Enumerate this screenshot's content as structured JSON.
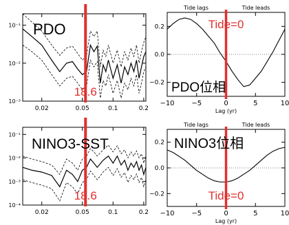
{
  "chart_data": [
    {
      "type": "line",
      "panel": "top-left",
      "title": "PDO",
      "x_scale": "log",
      "y_scale": "log",
      "xlim": [
        0.013,
        0.21
      ],
      "ylim": [
        0.001,
        0.2
      ],
      "x_ticks": [
        "0.02",
        "0.05",
        "0.1",
        "0.2"
      ],
      "y_ticks": [
        "10⁻¹",
        "10⁻²",
        "10⁻³"
      ],
      "marker": {
        "x": 0.0537,
        "label": "18.6"
      },
      "series": [
        {
          "role": "spectrum",
          "style": "solid",
          "x": [
            0.013,
            0.016,
            0.02,
            0.025,
            0.03,
            0.035,
            0.04,
            0.045,
            0.05,
            0.055,
            0.06,
            0.065,
            0.07,
            0.075,
            0.08,
            0.085,
            0.09,
            0.1,
            0.11,
            0.12,
            0.13,
            0.14,
            0.15,
            0.16,
            0.17,
            0.18,
            0.19,
            0.2,
            0.21
          ],
          "y": [
            0.08,
            0.05,
            0.03,
            0.012,
            0.006,
            0.01,
            0.011,
            0.007,
            0.005,
            0.006,
            0.03,
            0.02,
            0.028,
            0.003,
            0.009,
            0.006,
            0.012,
            0.004,
            0.009,
            0.003,
            0.008,
            0.005,
            0.01,
            0.006,
            0.012,
            0.004,
            0.008,
            0.015,
            0.02
          ]
        },
        {
          "role": "upper-bound",
          "style": "dashed",
          "x": [
            0.013,
            0.016,
            0.02,
            0.025,
            0.03,
            0.035,
            0.04,
            0.045,
            0.05,
            0.055,
            0.06,
            0.065,
            0.07,
            0.075,
            0.08,
            0.085,
            0.09,
            0.1,
            0.11,
            0.12,
            0.13,
            0.14,
            0.15,
            0.16,
            0.17,
            0.18,
            0.19,
            0.2,
            0.21
          ],
          "y": [
            0.2,
            0.12,
            0.07,
            0.03,
            0.016,
            0.025,
            0.028,
            0.018,
            0.012,
            0.016,
            0.07,
            0.05,
            0.07,
            0.008,
            0.022,
            0.015,
            0.03,
            0.01,
            0.022,
            0.008,
            0.02,
            0.012,
            0.025,
            0.015,
            0.03,
            0.01,
            0.02,
            0.035,
            0.05
          ]
        },
        {
          "role": "lower-bound",
          "style": "dashed",
          "x": [
            0.013,
            0.016,
            0.02,
            0.025,
            0.03,
            0.035,
            0.04,
            0.045,
            0.05,
            0.055,
            0.06,
            0.065,
            0.07,
            0.075,
            0.08,
            0.085,
            0.09,
            0.1,
            0.11,
            0.12,
            0.13,
            0.14,
            0.15,
            0.16,
            0.17,
            0.18,
            0.19,
            0.2,
            0.21
          ],
          "y": [
            0.03,
            0.02,
            0.012,
            0.005,
            0.0025,
            0.004,
            0.0045,
            0.003,
            0.002,
            0.0025,
            0.012,
            0.008,
            0.011,
            0.0012,
            0.0035,
            0.0025,
            0.005,
            0.0016,
            0.0035,
            0.0012,
            0.003,
            0.002,
            0.004,
            0.0025,
            0.005,
            0.0016,
            0.003,
            0.006,
            0.008
          ]
        }
      ]
    },
    {
      "type": "line",
      "panel": "top-right",
      "title": "PDO位相",
      "top_labels": [
        "Tide lags",
        "Tide leads"
      ],
      "xlabel": "Lag (yr)",
      "xlim": [
        -10,
        10
      ],
      "ylim": [
        -0.3,
        0.3
      ],
      "x_ticks": [
        "−10",
        "−5",
        "0",
        "5",
        "10"
      ],
      "y_ticks": [
        "0.2",
        "0.0",
        "−0.2"
      ],
      "marker": {
        "x": 0,
        "label": "Tide=0"
      },
      "series": [
        {
          "role": "correlation",
          "style": "solid",
          "x": [
            -10,
            -9,
            -8,
            -7,
            -6,
            -5,
            -4,
            -3,
            -2,
            -1,
            0,
            1,
            2,
            3,
            4,
            5,
            6,
            7,
            8,
            9,
            10
          ],
          "y": [
            0.18,
            0.22,
            0.25,
            0.26,
            0.25,
            0.22,
            0.18,
            0.13,
            0.08,
            0.01,
            -0.05,
            -0.12,
            -0.18,
            -0.23,
            -0.22,
            -0.17,
            -0.12,
            -0.05,
            0.02,
            0.1,
            0.18
          ]
        }
      ]
    },
    {
      "type": "line",
      "panel": "bottom-left",
      "title": "NINO3-SST",
      "x_scale": "log",
      "y_scale": "log",
      "xlim": [
        0.013,
        0.21
      ],
      "ylim": [
        0.0001,
        0.2
      ],
      "x_ticks": [
        "0.02",
        "0.05",
        "0.1",
        "0.2"
      ],
      "y_ticks": [
        "10⁻¹",
        "10⁻²",
        "10⁻³",
        "10⁻⁴"
      ],
      "marker": {
        "x": 0.0537,
        "label": "18.6"
      },
      "series": [
        {
          "role": "spectrum",
          "style": "solid",
          "x": [
            0.013,
            0.016,
            0.02,
            0.025,
            0.03,
            0.035,
            0.04,
            0.045,
            0.05,
            0.055,
            0.06,
            0.065,
            0.07,
            0.08,
            0.09,
            0.1,
            0.11,
            0.12,
            0.13,
            0.14,
            0.15,
            0.16,
            0.17,
            0.18,
            0.19,
            0.2,
            0.21
          ],
          "y": [
            0.004,
            0.003,
            0.0025,
            0.0018,
            0.0006,
            0.003,
            0.002,
            0.001,
            0.003,
            0.004,
            0.009,
            0.006,
            0.004,
            0.008,
            0.012,
            0.006,
            0.012,
            0.005,
            0.008,
            0.003,
            0.006,
            0.004,
            0.007,
            0.003,
            0.005,
            0.002,
            0.004
          ]
        },
        {
          "role": "upper-bound",
          "style": "dashed",
          "x": [
            0.013,
            0.016,
            0.02,
            0.025,
            0.03,
            0.035,
            0.04,
            0.045,
            0.05,
            0.055,
            0.06,
            0.065,
            0.07,
            0.08,
            0.09,
            0.1,
            0.11,
            0.12,
            0.13,
            0.14,
            0.15,
            0.16,
            0.17,
            0.18,
            0.19,
            0.2,
            0.21
          ],
          "y": [
            0.012,
            0.009,
            0.007,
            0.005,
            0.002,
            0.009,
            0.006,
            0.003,
            0.009,
            0.012,
            0.025,
            0.018,
            0.012,
            0.022,
            0.035,
            0.018,
            0.033,
            0.015,
            0.022,
            0.01,
            0.018,
            0.012,
            0.02,
            0.01,
            0.015,
            0.006,
            0.012
          ]
        },
        {
          "role": "lower-bound",
          "style": "dashed",
          "x": [
            0.013,
            0.016,
            0.02,
            0.025,
            0.03,
            0.035,
            0.04,
            0.045,
            0.05,
            0.055,
            0.06,
            0.065,
            0.07,
            0.08,
            0.09,
            0.1,
            0.11,
            0.12,
            0.13,
            0.14,
            0.15,
            0.16,
            0.17,
            0.18,
            0.19,
            0.2,
            0.21
          ],
          "y": [
            0.0012,
            0.0009,
            0.0007,
            0.0005,
            0.00015,
            0.0009,
            0.0006,
            0.0003,
            0.0009,
            0.0012,
            0.0028,
            0.0018,
            0.0012,
            0.0025,
            0.004,
            0.0018,
            0.0035,
            0.0015,
            0.0024,
            0.0009,
            0.0018,
            0.0012,
            0.0021,
            0.0009,
            0.0015,
            0.0006,
            0.0012
          ]
        }
      ]
    },
    {
      "type": "line",
      "panel": "bottom-right",
      "title": "NINO3位相",
      "top_labels": [
        "Tide lags",
        "Tide leads"
      ],
      "xlabel": "Lag (yr)",
      "xlim": [
        -10,
        10
      ],
      "ylim": [
        -0.3,
        0.3
      ],
      "x_ticks": [
        "−10",
        "−5",
        "0",
        "5",
        "10"
      ],
      "y_ticks": [
        "0.2",
        "0.0",
        "−0.2"
      ],
      "marker": {
        "x": 0,
        "label": "Tide=0"
      },
      "series": [
        {
          "role": "correlation",
          "style": "solid",
          "x": [
            -10,
            -9,
            -8,
            -7,
            -6,
            -5,
            -4,
            -3,
            -2,
            -1,
            0,
            1,
            2,
            3,
            4,
            5,
            6,
            7,
            8,
            9,
            10
          ],
          "y": [
            0.14,
            0.12,
            0.09,
            0.06,
            0.02,
            -0.02,
            -0.05,
            -0.08,
            -0.1,
            -0.11,
            -0.11,
            -0.1,
            -0.08,
            -0.05,
            -0.02,
            0.02,
            0.06,
            0.1,
            0.13,
            0.15,
            0.16
          ]
        }
      ]
    }
  ]
}
